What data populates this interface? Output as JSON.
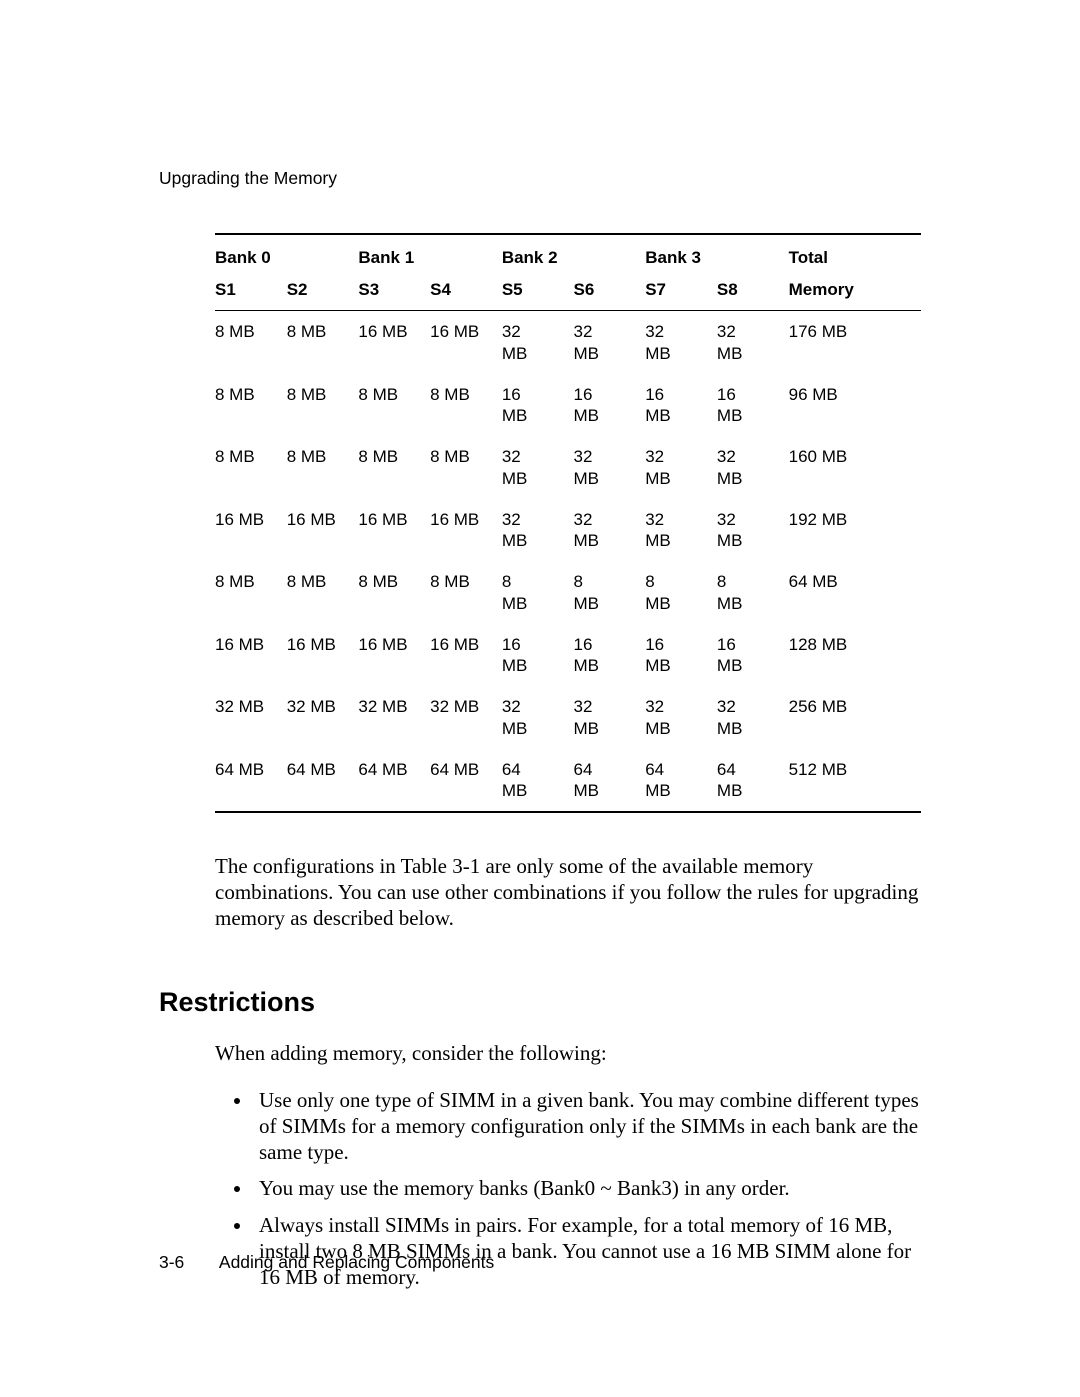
{
  "page": {
    "running_head": "Upgrading the Memory",
    "footer_pagenum": "3-6",
    "footer_title": "Adding and Replacing Components"
  },
  "table": {
    "bank_headers": [
      "Bank 0",
      "Bank 1",
      "Bank 2",
      "Bank 3"
    ],
    "total_header": "Total",
    "slot_headers": [
      "S1",
      "S2",
      "S3",
      "S4",
      "S5",
      "S6",
      "S7",
      "S8"
    ],
    "memory_header": "Memory",
    "rows": [
      {
        "s": [
          "8 MB",
          "8 MB",
          "16 MB",
          "16 MB",
          "32 MB",
          "32 MB",
          "32 MB",
          "32 MB"
        ],
        "total": "176 MB"
      },
      {
        "s": [
          "8 MB",
          "8 MB",
          "8 MB",
          "8 MB",
          "16 MB",
          "16 MB",
          "16 MB",
          "16 MB"
        ],
        "total": "96 MB"
      },
      {
        "s": [
          "8 MB",
          "8 MB",
          "8 MB",
          "8 MB",
          "32 MB",
          "32 MB",
          "32 MB",
          "32 MB"
        ],
        "total": "160 MB"
      },
      {
        "s": [
          "16 MB",
          "16 MB",
          "16 MB",
          "16 MB",
          "32 MB",
          "32 MB",
          "32 MB",
          "32 MB"
        ],
        "total": "192 MB"
      },
      {
        "s": [
          "8 MB",
          "8 MB",
          "8 MB",
          "8 MB",
          "8 MB",
          "8 MB",
          "8 MB",
          "8 MB"
        ],
        "total": "64 MB"
      },
      {
        "s": [
          "16 MB",
          "16 MB",
          "16 MB",
          "16 MB",
          "16 MB",
          "16 MB",
          "16 MB",
          "16 MB"
        ],
        "total": "128 MB"
      },
      {
        "s": [
          "32 MB",
          "32 MB",
          "32 MB",
          "32 MB",
          "32 MB",
          "32 MB",
          "32 MB",
          "32 MB"
        ],
        "total": "256 MB"
      },
      {
        "s": [
          "64 MB",
          "64 MB",
          "64 MB",
          "64 MB",
          "64 MB",
          "64 MB",
          "64 MB",
          "64 MB"
        ],
        "total": "512 MB"
      }
    ],
    "wrap_after_col": 4,
    "colors": {
      "rule": "#000000",
      "text": "#000000",
      "background": "#ffffff"
    },
    "font": {
      "family": "Arial",
      "size_pt": 13,
      "header_weight": "bold"
    }
  },
  "body": {
    "para1": "The configurations in Table 3-1 are only some of the available memory combinations. You can use other combinations if you follow the rules for upgrading memory as described below.",
    "section_heading": "Restrictions",
    "intro": "When adding memory, consider the following:",
    "bullets": [
      "Use only one type of SIMM in a given bank. You may combine different types of SIMMs for a memory configuration only if the SIMMs in each bank are the same type.",
      "You may use the memory banks (Bank0 ~ Bank3) in any order.",
      "Always install SIMMs in pairs. For example, for a total memory of 16 MB, install two 8 MB SIMMs in a bank. You cannot use a 16 MB SIMM alone for 16 MB of memory."
    ]
  }
}
